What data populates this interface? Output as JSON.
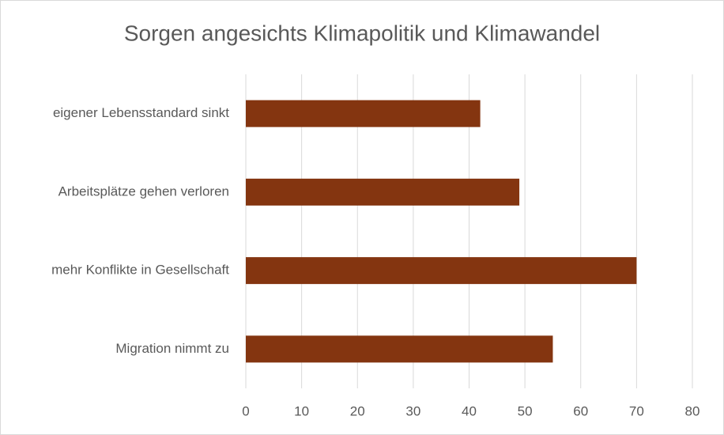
{
  "chart_data": {
    "type": "bar",
    "orientation": "horizontal",
    "title": "Sorgen angesichts Klimapolitik und Klimawandel",
    "categories": [
      "eigener Lebensstandard sinkt",
      "Arbeitsplätze gehen verloren",
      "mehr Konflikte in Gesellschaft",
      "Migration nimmt zu"
    ],
    "values": [
      42,
      49,
      70,
      55
    ],
    "color": "#843510",
    "xlim": [
      0,
      80
    ],
    "xticks": [
      0,
      10,
      20,
      30,
      40,
      50,
      60,
      70,
      80
    ],
    "grid": true
  }
}
